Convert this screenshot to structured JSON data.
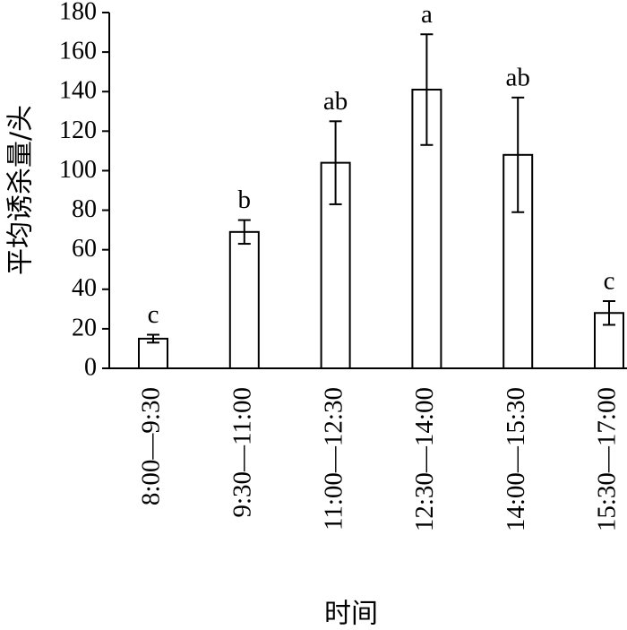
{
  "chart_data": {
    "type": "bar",
    "y_label": "平均诱杀量/头",
    "x_label": "时间",
    "categories": [
      "8:00—9:30",
      "9:30—11:00",
      "11:00—12:30",
      "12:30—14:00",
      "14:00—15:30",
      "15:30—17:00"
    ],
    "series": [
      {
        "values": [
          15,
          69,
          104,
          141,
          108,
          28
        ],
        "errors": [
          2,
          6,
          21,
          28,
          29,
          6
        ],
        "color": "#ffffff"
      }
    ],
    "annotations": [
      "c",
      "b",
      "ab",
      "a",
      "ab",
      "c"
    ],
    "ylim": [
      0,
      180
    ],
    "yticks": [
      0,
      20,
      40,
      60,
      80,
      100,
      120,
      140,
      160,
      180
    ]
  }
}
